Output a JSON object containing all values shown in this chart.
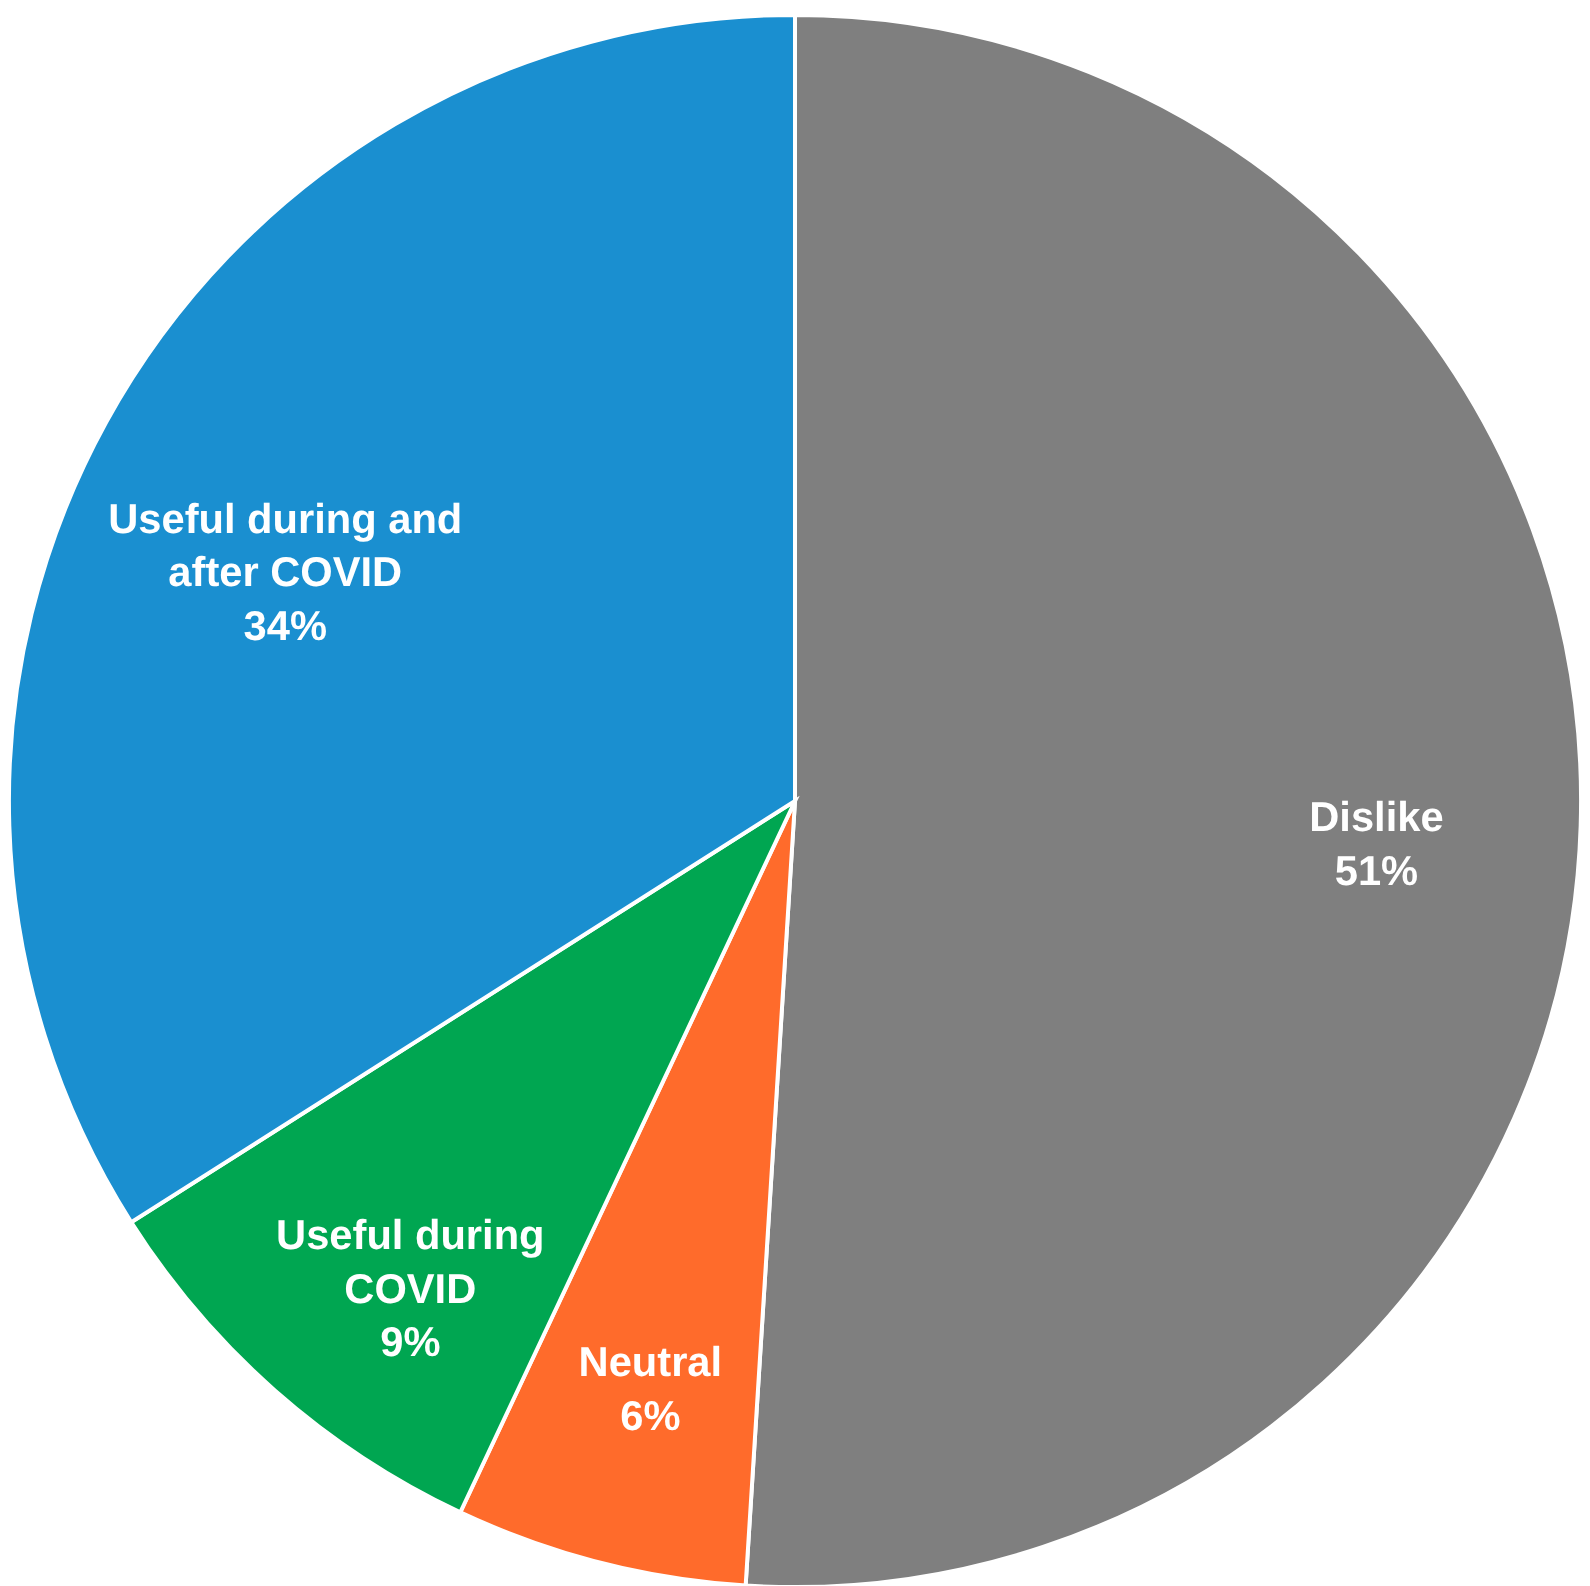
{
  "chart_data": {
    "type": "pie",
    "categories": [
      "Dislike",
      "Neutral",
      "Useful during COVID",
      "Useful during and after COVID"
    ],
    "values": [
      51,
      6,
      9,
      34
    ],
    "colors": [
      "#7f7f7f",
      "#ff6b2b",
      "#00a651",
      "#1a8fd0"
    ],
    "value_labels": [
      "51%",
      "6%",
      "9%",
      "34%"
    ]
  }
}
